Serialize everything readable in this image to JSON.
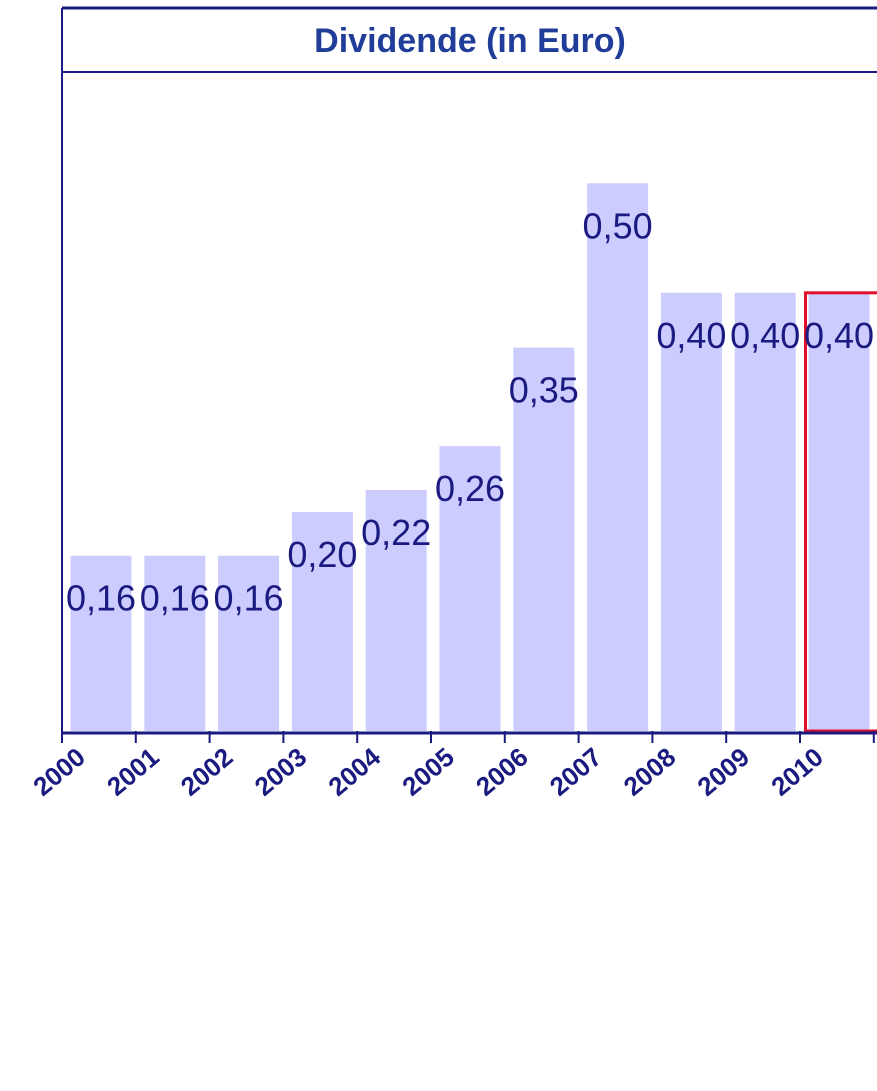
{
  "chart_data": {
    "type": "bar",
    "title": "Dividende (in Euro)",
    "categories": [
      "2000",
      "2001",
      "2002",
      "2003",
      "2004",
      "2005",
      "2006",
      "2007",
      "2008",
      "2009",
      "2010"
    ],
    "values": [
      0.16,
      0.16,
      0.16,
      0.2,
      0.22,
      0.26,
      0.35,
      0.5,
      0.4,
      0.4,
      0.4
    ],
    "data_labels": [
      "0,16",
      "0,16",
      "0,16",
      "0,20",
      "0,22",
      "0,26",
      "0,35",
      "0,50",
      "0,40",
      "0,40",
      "0,40"
    ],
    "highlighted_category": "2010",
    "ylim": [
      0,
      0.66
    ],
    "grid": false,
    "legend": "none",
    "colors": {
      "bar": "#ccccff",
      "frame": "#1a1a80",
      "title": "#1f3d99",
      "label": "#1a1a80",
      "highlight": "#e0102a"
    }
  }
}
